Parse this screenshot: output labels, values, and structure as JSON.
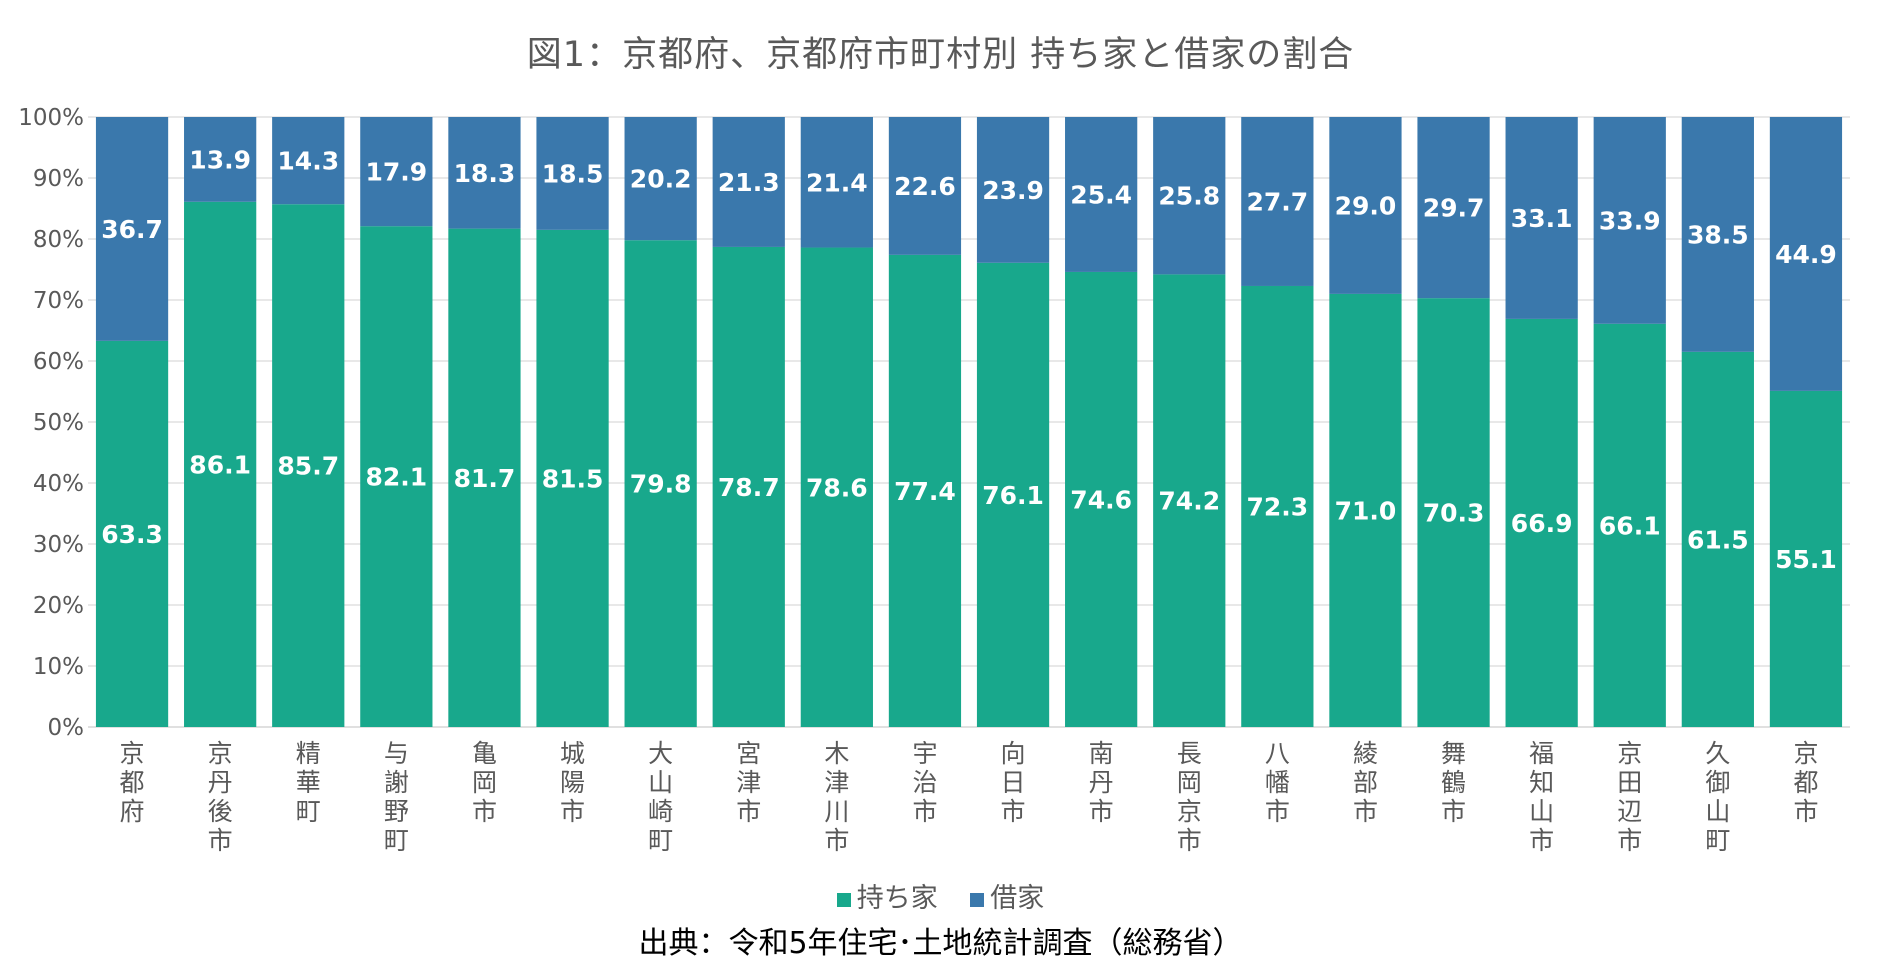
{
  "title": "図1：京都府、京都府市町村別 持ち家と借家の割合",
  "source": "出典：令和5年住宅･土地統計調査（総務省）",
  "colors": {
    "owned": "#18A88C",
    "rented": "#3A78AC",
    "grid": "#D9D9D9",
    "axis_text": "#595959"
  },
  "chart_data": {
    "type": "bar",
    "stacked": true,
    "title": "図1：京都府、京都府市町村別 持ち家と借家の割合",
    "xlabel": "",
    "ylabel": "",
    "ylim": [
      0,
      100
    ],
    "y_ticks": [
      "0%",
      "10%",
      "20%",
      "30%",
      "40%",
      "50%",
      "60%",
      "70%",
      "80%",
      "90%",
      "100%"
    ],
    "grid": true,
    "legend_position": "bottom",
    "categories": [
      "京都府",
      "京丹後市",
      "精華町",
      "与謝野町",
      "亀岡市",
      "城陽市",
      "大山崎町",
      "宮津市",
      "木津川市",
      "宇治市",
      "向日市",
      "南丹市",
      "長岡京市",
      "八幡市",
      "綾部市",
      "舞鶴市",
      "福知山市",
      "京田辺市",
      "久御山町",
      "京都市"
    ],
    "series": [
      {
        "name": "持ち家",
        "values": [
          63.3,
          86.1,
          85.7,
          82.1,
          81.7,
          81.5,
          79.8,
          78.7,
          78.6,
          77.4,
          76.1,
          74.6,
          74.2,
          72.3,
          71.0,
          70.3,
          66.9,
          66.1,
          61.5,
          55.1
        ]
      },
      {
        "name": "借家",
        "values": [
          36.7,
          13.9,
          14.3,
          17.9,
          18.3,
          18.5,
          20.2,
          21.3,
          21.4,
          22.6,
          23.9,
          25.4,
          25.8,
          27.7,
          29.0,
          29.7,
          33.1,
          33.9,
          38.5,
          44.9
        ]
      }
    ]
  }
}
